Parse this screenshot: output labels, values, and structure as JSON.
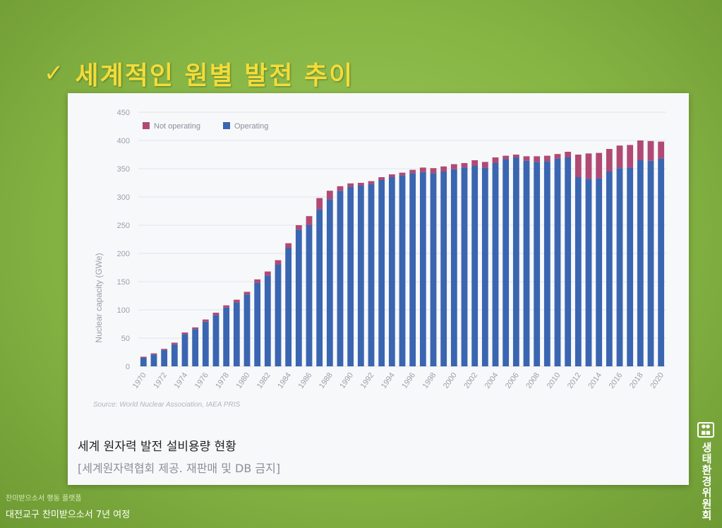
{
  "slide": {
    "check_glyph": "✓",
    "title": "세계적인 원별 발전 추이",
    "caption_title": "세계 원자력 발전 설비용량 현황",
    "caption_note": "[세계원자력협회 제공. 재판매 및 DB 금지]",
    "footer_small": "찬미받으소서 행동 플랫폼",
    "footer_main": "대전교구 찬미받으소서 7년 여정",
    "side_logo_text": "생태환경위원회",
    "colors": {
      "title": "#f2dc3a",
      "background": "#86b544",
      "operating": "#3a65b0",
      "not_operating": "#b04a74"
    }
  },
  "chart_data": {
    "type": "bar",
    "stacked": true,
    "ylabel": "Nuclear capacity (GWe)",
    "ylim": [
      0,
      450
    ],
    "yticks": [
      0,
      50,
      100,
      150,
      200,
      250,
      300,
      350,
      400,
      450
    ],
    "grid": true,
    "legend_position": "top-left",
    "source": "Source: World Nuclear Association, IAEA PRIS",
    "xtick_labels": [
      "1970",
      "1972",
      "1974",
      "1976",
      "1978",
      "1980",
      "1982",
      "1984",
      "1986",
      "1988",
      "1990",
      "1992",
      "1994",
      "1996",
      "1998",
      "2000",
      "2002",
      "2004",
      "2006",
      "2008",
      "2010",
      "2012",
      "2014",
      "2016",
      "2018",
      "2020"
    ],
    "categories": [
      "1970",
      "1971",
      "1972",
      "1973",
      "1974",
      "1975",
      "1976",
      "1977",
      "1978",
      "1979",
      "1980",
      "1981",
      "1982",
      "1983",
      "1984",
      "1985",
      "1986",
      "1987",
      "1988",
      "1989",
      "1990",
      "1991",
      "1992",
      "1993",
      "1994",
      "1995",
      "1996",
      "1997",
      "1998",
      "1999",
      "2000",
      "2001",
      "2002",
      "2003",
      "2004",
      "2005",
      "2006",
      "2007",
      "2008",
      "2009",
      "2010",
      "2011",
      "2012",
      "2013",
      "2014",
      "2015",
      "2016",
      "2017",
      "2018",
      "2019",
      "2020"
    ],
    "series": [
      {
        "name": "Not operating",
        "color": "#b04a74",
        "values": [
          2,
          2,
          2,
          3,
          3,
          3,
          4,
          4,
          4,
          5,
          5,
          6,
          7,
          8,
          8,
          8,
          16,
          20,
          15,
          8,
          6,
          5,
          5,
          5,
          5,
          5,
          6,
          8,
          9,
          9,
          9,
          8,
          10,
          10,
          10,
          6,
          5,
          8,
          10,
          10,
          8,
          10,
          40,
          45,
          45,
          40,
          40,
          40,
          35,
          35,
          30
        ]
      },
      {
        "name": "Operating",
        "color": "#3a65b0",
        "values": [
          15,
          21,
          29,
          39,
          57,
          66,
          79,
          91,
          104,
          113,
          127,
          148,
          161,
          180,
          210,
          242,
          250,
          278,
          296,
          311,
          318,
          320,
          323,
          330,
          335,
          338,
          342,
          344,
          342,
          345,
          349,
          352,
          355,
          352,
          360,
          367,
          370,
          364,
          362,
          363,
          368,
          370,
          335,
          332,
          333,
          345,
          351,
          352,
          365,
          364,
          368
        ]
      }
    ]
  }
}
